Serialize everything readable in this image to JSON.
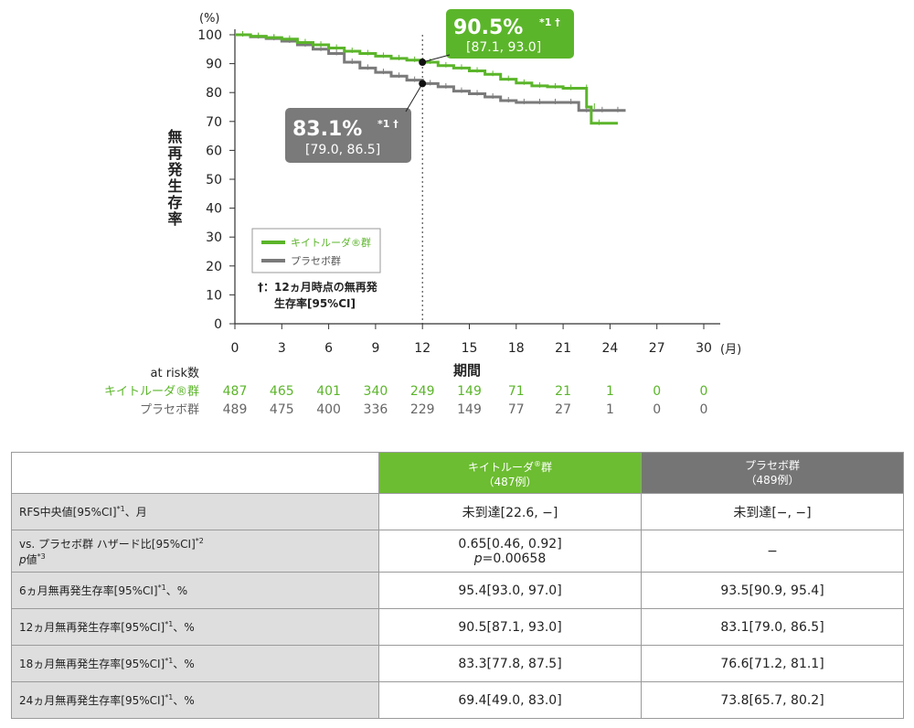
{
  "chart_data": {
    "type": "line",
    "y_unit": "(%)",
    "ylabel": "無再発生存率",
    "xlabel": "期間",
    "x_unit": "(月)",
    "xlim": [
      0,
      30
    ],
    "ylim": [
      0,
      100
    ],
    "x_ticks": [
      0,
      3,
      6,
      9,
      12,
      15,
      18,
      21,
      24,
      27,
      30
    ],
    "y_ticks": [
      0,
      10,
      20,
      30,
      40,
      50,
      60,
      70,
      80,
      90,
      100
    ],
    "colors": {
      "keytruda": "#5bb52a",
      "placebo": "#7a7a7a"
    },
    "series": [
      {
        "name": "キイトルーダ®群",
        "key": "keytruda",
        "x": [
          0,
          1,
          2,
          3,
          4,
          5,
          6,
          7,
          8,
          9,
          10,
          11,
          12,
          13,
          14,
          15,
          16,
          17,
          18,
          19,
          20,
          21,
          22,
          22.5,
          22.8,
          24.5
        ],
        "y": [
          100,
          99.5,
          99,
          98.5,
          97.3,
          96.5,
          95.4,
          94.3,
          93.5,
          92.6,
          91.8,
          91.2,
          90.5,
          89.3,
          88.5,
          87.5,
          86.3,
          84.6,
          83.3,
          82.3,
          82.0,
          81.5,
          81.5,
          75,
          69.4,
          69.4
        ]
      },
      {
        "name": "プラセボ群",
        "key": "placebo",
        "x": [
          0,
          1,
          2,
          3,
          4,
          5,
          6,
          7,
          8,
          9,
          10,
          11,
          12,
          13,
          14,
          15,
          16,
          17,
          18,
          19,
          20,
          21,
          22,
          23,
          24,
          25
        ],
        "y": [
          100,
          99.3,
          98.7,
          97.8,
          96.5,
          95,
          93.5,
          90.5,
          88.5,
          87,
          85.7,
          84.3,
          83.1,
          82,
          80.5,
          79.6,
          78.5,
          77.2,
          76.6,
          76.6,
          76.6,
          76.6,
          73.8,
          73.8,
          73.8,
          73.8
        ]
      }
    ],
    "callouts": [
      {
        "series": "keytruda",
        "x": 12,
        "y": 90.5,
        "value": "90.5%",
        "mark": "*1 †",
        "ci": "[87.1, 93.0]"
      },
      {
        "series": "placebo",
        "x": 12,
        "y": 83.1,
        "value": "83.1%",
        "mark": "*1 †",
        "ci": "[79.0, 86.5]"
      }
    ],
    "legend": {
      "items": [
        "キイトルーダ®群",
        "プラセボ群"
      ],
      "note_line1": "†：12ヵ月時点の無再発",
      "note_line2": "生存率[95%CI]",
      "placement": "lower-left"
    },
    "at_risk": {
      "title": "at risk数",
      "rows": [
        {
          "label": "キイトルーダ®群",
          "key": "keytruda",
          "values": [
            "487",
            "465",
            "401",
            "340",
            "249",
            "149",
            "71",
            "21",
            "1",
            "0",
            "0"
          ]
        },
        {
          "label": "プラセボ群",
          "key": "placebo",
          "values": [
            "489",
            "475",
            "400",
            "336",
            "229",
            "149",
            "77",
            "27",
            "1",
            "0",
            "0"
          ]
        }
      ]
    }
  },
  "table": {
    "header_keytruda_line1": "キイトルーダ",
    "header_keytruda_sup": "®",
    "header_keytruda_line1_end": "群",
    "header_keytruda_line2": "（487例）",
    "header_placebo_line1": "プラセボ群",
    "header_placebo_line2": "（489例）",
    "rows": [
      {
        "label": "RFS中央値[95%CI]",
        "label_sup": "*1",
        "label_end": "、月",
        "keytruda": "未到達[22.6, −]",
        "placebo": "未到達[−, −]"
      },
      {
        "label": "vs. プラセボ群 ハザード比[95%CI]",
        "label_sup": "*2",
        "label2_p": "p",
        "label2": "値",
        "label2_sup": "*3",
        "keytruda": "0.65[0.46, 0.92]",
        "keytruda2_p": "p",
        "keytruda2": "=0.00658",
        "placebo": "−"
      },
      {
        "label": "6ヵ月無再発生存率[95%CI]",
        "label_sup": "*1",
        "label_end": "、%",
        "keytruda": "95.4[93.0, 97.0]",
        "placebo": "93.5[90.9, 95.4]"
      },
      {
        "label": "12ヵ月無再発生存率[95%CI]",
        "label_sup": "*1",
        "label_end": "、%",
        "keytruda": "90.5[87.1, 93.0]",
        "placebo": "83.1[79.0, 86.5]"
      },
      {
        "label": "18ヵ月無再発生存率[95%CI]",
        "label_sup": "*1",
        "label_end": "、%",
        "keytruda": "83.3[77.8, 87.5]",
        "placebo": "76.6[71.2, 81.1]"
      },
      {
        "label": "24ヵ月無再発生存率[95%CI]",
        "label_sup": "*1",
        "label_end": "、%",
        "keytruda": "69.4[49.0, 83.0]",
        "placebo": "73.8[65.7, 80.2]"
      }
    ]
  }
}
